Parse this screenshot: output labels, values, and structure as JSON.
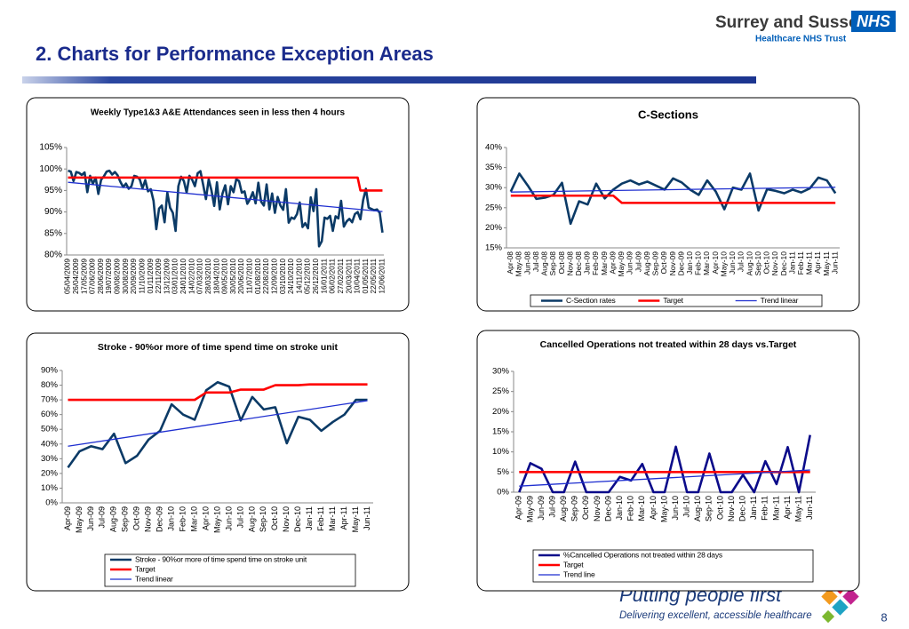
{
  "header": {
    "title": "2. Charts for Performance Exception Areas",
    "org": "Surrey and Sussex",
    "nhs": "NHS",
    "trust": "Healthcare NHS Trust"
  },
  "footer": {
    "slogan": "Putting people first",
    "tagline": "Delivering excellent, accessible healthcare",
    "page": 8
  },
  "chart_data": [
    {
      "type": "line",
      "title": "Weekly Type1&3 A&E Attendances seen in less then 4 hours",
      "categories": [
        "05/04/2009",
        null,
        null,
        "26/04/2009",
        null,
        null,
        "17/05/2009",
        null,
        null,
        "07/06/2009",
        null,
        null,
        "28/06/2009",
        null,
        null,
        "19/07/2009",
        null,
        null,
        "09/08/2009",
        null,
        null,
        "30/08/2009",
        null,
        null,
        "20/09/2009",
        null,
        null,
        "11/10/2009",
        null,
        null,
        "01/11/2009",
        null,
        null,
        "22/11/2009",
        null,
        null,
        "13/12/2009",
        null,
        null,
        "03/01/2010",
        null,
        null,
        "24/01/2010",
        null,
        null,
        "14/02/2010",
        null,
        null,
        "07/03/2010",
        null,
        null,
        "28/03/2010",
        null,
        null,
        "18/04/2010",
        null,
        null,
        "09/05/2010",
        null,
        null,
        "30/05/2010",
        null,
        null,
        "20/06/2010",
        null,
        null,
        "11/07/2010",
        null,
        null,
        "01/08/2010",
        null,
        null,
        "22/08/2010",
        null,
        null,
        "12/09/2010",
        null,
        null,
        "03/10/2010",
        null,
        null,
        "24/10/2010",
        null,
        null,
        "14/11/2010",
        null,
        null,
        "05/12/2010",
        null,
        null,
        "26/12/2010",
        null,
        null,
        "16/01/2011",
        null,
        null,
        "06/02/2011",
        null,
        null,
        "27/02/2011",
        null,
        null,
        "20/03/2011",
        null,
        null,
        "10/04/2011",
        null,
        null,
        "01/05/2011",
        null,
        null,
        "22/05/2011",
        null,
        null,
        "12/06/2011"
      ],
      "series": [
        {
          "color": "#0b3a66",
          "values": [
            99.6,
            99.4,
            97.2,
            99.3,
            99.1,
            98.6,
            99.2,
            94.6,
            98.4,
            96.5,
            98.0,
            94.2,
            97.5,
            98.3,
            99.4,
            99.6,
            98.7,
            99.3,
            98.5,
            97.0,
            95.8,
            96.6,
            95.4,
            96.0,
            98.4,
            98.2,
            97.6,
            95.5,
            97.4,
            94.8,
            95.3,
            92.6,
            86.0,
            90.8,
            91.5,
            87.6,
            94.5,
            91.0,
            89.8,
            85.6,
            96.0,
            98.2,
            97.2,
            94.5,
            98.4,
            97.5,
            96.0,
            99.0,
            99.5,
            96.3,
            93.0,
            97.6,
            95.0,
            91.4,
            96.9,
            90.6,
            94.3,
            96.2,
            91.8,
            96.0,
            94.6,
            97.6,
            97.2,
            94.5,
            94.8,
            91.9,
            93.0,
            94.6,
            92.0,
            96.8,
            92.4,
            91.5,
            96.4,
            90.6,
            94.3,
            89.8,
            93.5,
            91.5,
            90.5,
            95.3,
            87.5,
            88.7,
            88.4,
            89.5,
            92.2,
            86.5,
            87.4,
            86.2,
            93.4,
            90.2,
            95.3,
            82.0,
            83.2,
            88.7,
            88.4,
            89.1,
            85.6,
            89.0,
            88.5,
            92.6,
            86.6,
            87.8,
            88.4,
            87.6,
            89.5,
            90.0,
            88.3,
            92.8,
            95.4,
            91.0,
            90.7,
            90.4,
            90.6,
            89.8,
            85.2
          ]
        },
        {
          "color": "#ff0000",
          "values": [
            98,
            98,
            98,
            98,
            98,
            98,
            98,
            98,
            98,
            98,
            98,
            98,
            98,
            98,
            98,
            98,
            98,
            98,
            98,
            98,
            98,
            98,
            98,
            98,
            98,
            98,
            98,
            98,
            98,
            98,
            98,
            98,
            98,
            98,
            98,
            98,
            98,
            98,
            98,
            98,
            98,
            98,
            98,
            98,
            98,
            98,
            98,
            98,
            98,
            98,
            98,
            98,
            98,
            98,
            98,
            98,
            98,
            98,
            98,
            98,
            98,
            98,
            98,
            98,
            98,
            98,
            98,
            98,
            98,
            98,
            98,
            98,
            98,
            98,
            98,
            98,
            98,
            98,
            98,
            98,
            98,
            98,
            98,
            98,
            98,
            98,
            98,
            98,
            98,
            98,
            98,
            98,
            98,
            98,
            98,
            98,
            98,
            98,
            98,
            98,
            98,
            98,
            98,
            98,
            98,
            98,
            95,
            95,
            95,
            95,
            95,
            95,
            95,
            95,
            95
          ]
        }
      ],
      "trend": {
        "color": "#1f2fd0",
        "values": [
          96.9,
          90.1
        ]
      },
      "ylim": [
        80,
        105
      ],
      "yticks": [
        {
          "value": 80,
          "label": "80%"
        },
        {
          "value": 85,
          "label": "85%"
        },
        {
          "value": 90,
          "label": "90%"
        },
        {
          "value": 95,
          "label": "95%"
        },
        {
          "value": 100,
          "label": "100%"
        },
        {
          "value": 105,
          "label": "105%"
        }
      ],
      "grid": false
    },
    {
      "type": "line",
      "title": "C-Sections",
      "categories": [
        "Apr-08",
        "May-08",
        "Jun-08",
        "Jul-08",
        "Aug-08",
        "Sep-08",
        "Oct-08",
        "Nov-08",
        "Dec-08",
        "Jan-09",
        "Feb-09",
        "Mar-09",
        "Apr-09",
        "May-09",
        "Jun-09",
        "Jul-09",
        "Aug-09",
        "Sep-09",
        "Oct-09",
        "Nov-09",
        "Dec-09",
        "Jan-10",
        "Feb-10",
        "Mar-10",
        "Apr-10",
        "May-10",
        "Jun-10",
        "Jul-10",
        "Aug-10",
        "Sep-10",
        "Oct-10",
        "Nov-10",
        "Dec-10",
        "Jan-11",
        "Feb-11",
        "Mar-11",
        "Apr-11",
        "May-11",
        "Jun-11"
      ],
      "series": [
        {
          "name": "C-Section rates",
          "color": "#0b3a66",
          "values": [
            29,
            33.5,
            30.5,
            27.2,
            27.5,
            28.2,
            31.2,
            21,
            26.6,
            25.8,
            31,
            27.3,
            29.5,
            31,
            31.8,
            30.8,
            31.5,
            30.5,
            29.5,
            32.3,
            31.3,
            29.5,
            28.2,
            31.8,
            29,
            24.6,
            30,
            29.5,
            33.5,
            24.3,
            29.6,
            29.2,
            28.6,
            29.5,
            28.8,
            29.8,
            32.5,
            31.8,
            28.6
          ]
        },
        {
          "name": "Target",
          "color": "#ff0000",
          "values": [
            28,
            28,
            28,
            28,
            28,
            28,
            28,
            28,
            28,
            28,
            28,
            28,
            28,
            26.2,
            26.2,
            26.2,
            26.2,
            26.2,
            26.2,
            26.2,
            26.2,
            26.2,
            26.2,
            26.2,
            26.2,
            26.2,
            26.2,
            26.2,
            26.2,
            26.2,
            26.2,
            26.2,
            26.2,
            26.2,
            26.2,
            26.2,
            26.2,
            26.2,
            26.2
          ]
        }
      ],
      "trend": {
        "name": "Trend linear",
        "color": "#1f2fd0",
        "values": [
          28.9,
          30.1
        ]
      },
      "ylim": [
        15,
        40
      ],
      "yticks": [
        {
          "value": 15,
          "label": "15%"
        },
        {
          "value": 20,
          "label": "20%"
        },
        {
          "value": 25,
          "label": "25%"
        },
        {
          "value": 30,
          "label": "30%"
        },
        {
          "value": 35,
          "label": "35%"
        },
        {
          "value": 40,
          "label": "40%"
        }
      ],
      "grid": false,
      "legend": "bottom"
    },
    {
      "type": "line",
      "title": "Stroke - 90%or more of time spend time on stroke unit",
      "categories": [
        "Apr-09",
        "May-09",
        "Jun-09",
        "Jul-09",
        "Aug-09",
        "Sep-09",
        "Oct-09",
        "Nov-09",
        "Dec-09",
        "Jan-10",
        "Feb-10",
        "Mar-10",
        "Apr-10",
        "May-10",
        "Jun-10",
        "Jul-10",
        "Aug-10",
        "Sep-10",
        "Oct-10",
        "Nov-10",
        "Dec-10",
        "Jan-11",
        "Feb-11",
        "Mar-11",
        "Apr-11",
        "May-11",
        "Jun-11"
      ],
      "series": [
        {
          "name": "Stroke - 90%or more of time spend time on stroke unit",
          "color": "#0b3a66",
          "values": [
            24,
            35,
            38.5,
            36.5,
            47,
            27,
            32,
            43,
            49,
            67,
            60,
            56.5,
            76.5,
            82,
            79,
            56,
            72,
            63.5,
            65,
            40.5,
            58.5,
            56.5,
            49,
            55,
            60,
            70,
            70
          ]
        },
        {
          "name": "Target",
          "color": "#ff0000",
          "values": [
            70,
            70,
            70,
            70,
            70,
            70,
            70,
            70,
            70,
            70,
            70,
            70,
            75,
            75,
            75,
            77,
            77,
            77,
            80,
            80,
            80,
            80.5,
            80.5,
            80.5,
            80.5,
            80.5,
            80.5
          ]
        }
      ],
      "trend": {
        "name": "Trend linear",
        "color": "#1f2fd0",
        "values": [
          38.5,
          69.5
        ]
      },
      "ylim": [
        0,
        90
      ],
      "yticks": [
        {
          "value": 0,
          "label": "0%"
        },
        {
          "value": 10,
          "label": "10%"
        },
        {
          "value": 20,
          "label": "20%"
        },
        {
          "value": 30,
          "label": "30%"
        },
        {
          "value": 40,
          "label": "40%"
        },
        {
          "value": 50,
          "label": "50%"
        },
        {
          "value": 60,
          "label": "60%"
        },
        {
          "value": 70,
          "label": "70%"
        },
        {
          "value": 80,
          "label": "80%"
        },
        {
          "value": 90,
          "label": "90%"
        }
      ],
      "grid": false,
      "legend": "bottom"
    },
    {
      "type": "line",
      "title": "Cancelled Operations not treated within 28 days vs.Target",
      "categories": [
        "Apr-09",
        "May-09",
        "Jun-09",
        "Jul-09",
        "Aug-09",
        "Sep-09",
        "Oct-09",
        "Nov-09",
        "Dec-09",
        "Jan-10",
        "Feb-10",
        "Mar-10",
        "Apr-10",
        "May-10",
        "Jun-10",
        "Jul-10",
        "Aug-10",
        "Sep-10",
        "Oct-10",
        "Nov-10",
        "Dec-10",
        "Jan-11",
        "Feb-11",
        "Mar-11",
        "Apr-11",
        "May-11",
        "Jun-11"
      ],
      "series": [
        {
          "name": "%Cancelled Operations not treated within 28 days",
          "color": "#0b0b8a",
          "values": [
            0,
            7.2,
            5.8,
            0,
            0,
            7.6,
            0,
            0,
            0,
            3.8,
            2.9,
            7,
            0,
            0,
            11.3,
            0,
            0,
            9.6,
            0,
            0,
            4.3,
            0,
            7.7,
            2,
            11.2,
            0,
            14.2
          ]
        },
        {
          "name": "Target",
          "color": "#ff0000",
          "values": [
            5,
            5,
            5,
            5,
            5,
            5,
            5,
            5,
            5,
            5,
            5,
            5,
            5,
            5,
            5,
            5,
            5,
            5,
            5,
            5,
            5,
            5,
            5,
            5,
            5,
            5,
            5
          ]
        }
      ],
      "trend": {
        "name": "Trend line",
        "color": "#1f2fd0",
        "values": [
          1.5,
          5.5
        ]
      },
      "ylim": [
        0,
        30
      ],
      "yticks": [
        {
          "value": 0,
          "label": "0%"
        },
        {
          "value": 5,
          "label": "5%"
        },
        {
          "value": 10,
          "label": "10%"
        },
        {
          "value": 15,
          "label": "15%"
        },
        {
          "value": 20,
          "label": "20%"
        },
        {
          "value": 25,
          "label": "25%"
        },
        {
          "value": 30,
          "label": "30%"
        }
      ],
      "grid": false,
      "legend": "bottom"
    }
  ]
}
